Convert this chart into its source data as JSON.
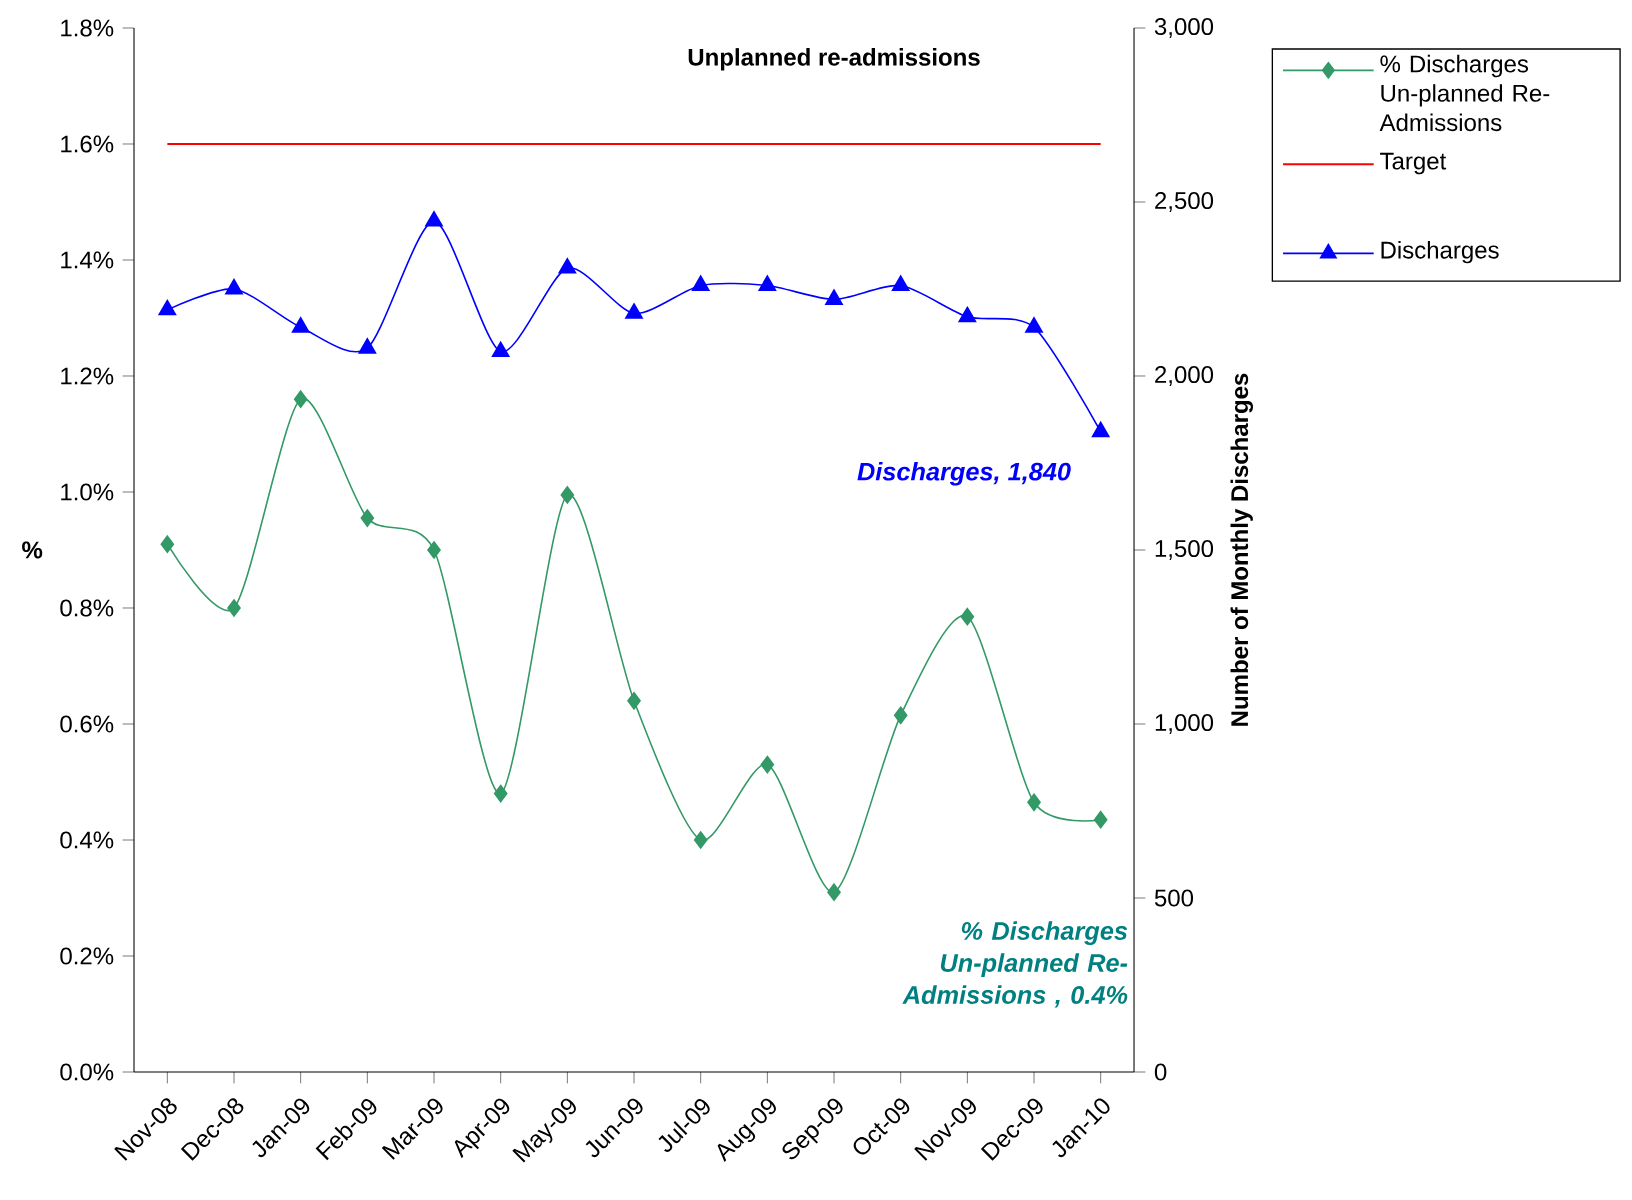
{
  "chart_data": {
    "type": "line",
    "title": "Unplanned re-admissions",
    "ylabel": "%",
    "y2label": "Number of Monthly Discharges",
    "categories": [
      "Nov-08",
      "Dec-08",
      "Jan-09",
      "Feb-09",
      "Mar-09",
      "Apr-09",
      "May-09",
      "Jun-09",
      "Jul-09",
      "Aug-09",
      "Sep-09",
      "Oct-09",
      "Nov-09",
      "Dec-09",
      "Jan-10"
    ],
    "series": [
      {
        "name": "% Discharges Un-planned Re-Admissions",
        "color": "#339966",
        "marker": "diamond",
        "values": [
          0.91,
          0.8,
          1.16,
          0.955,
          0.9,
          0.48,
          0.995,
          0.64,
          0.4,
          0.53,
          0.31,
          0.615,
          0.785,
          0.465,
          0.435
        ]
      },
      {
        "name": "Target",
        "color": "#ff0000",
        "marker": "none",
        "values": [
          1.6,
          1.6,
          1.6,
          1.6,
          1.6,
          1.6,
          1.6,
          1.6,
          1.6,
          1.6,
          1.6,
          1.6,
          1.6,
          1.6,
          1.6
        ]
      },
      {
        "name": "Discharges",
        "color": "#0000ff",
        "marker": "triangle",
        "axis": "y2",
        "values": [
          2190,
          2250,
          2140,
          2080,
          2445,
          2070,
          2310,
          2180,
          2260,
          2260,
          2220,
          2260,
          2170,
          2140,
          1840
        ]
      }
    ],
    "ylim": [
      0,
      1.8
    ],
    "yticks": [
      {
        "value": 0,
        "label": "0.0%"
      },
      {
        "value": 0.2,
        "label": "0.2%"
      },
      {
        "value": 0.4,
        "label": "0.4%"
      },
      {
        "value": 0.6,
        "label": "0.6%"
      },
      {
        "value": 0.8,
        "label": "0.8%"
      },
      {
        "value": 1.0,
        "label": "1.0%"
      },
      {
        "value": 1.2,
        "label": "1.2%"
      },
      {
        "value": 1.4,
        "label": "1.4%"
      },
      {
        "value": 1.6,
        "label": "1.6%"
      },
      {
        "value": 1.8,
        "label": "1.8%"
      }
    ],
    "y2lim": [
      0,
      3000
    ],
    "y2ticks": [
      0,
      500,
      {
        "value": 1000,
        "label": "1,000"
      },
      {
        "value": 1500,
        "label": "1,500"
      },
      {
        "value": 2000,
        "label": "2,000"
      },
      {
        "value": 2500,
        "label": "2,500"
      },
      {
        "value": 3000,
        "label": "3,000"
      }
    ],
    "annotations": [
      "Discharges, 1,840",
      "% Discharges Un-planned Re-Admissions , 0.4%"
    ],
    "legend": "right",
    "grid": false
  }
}
